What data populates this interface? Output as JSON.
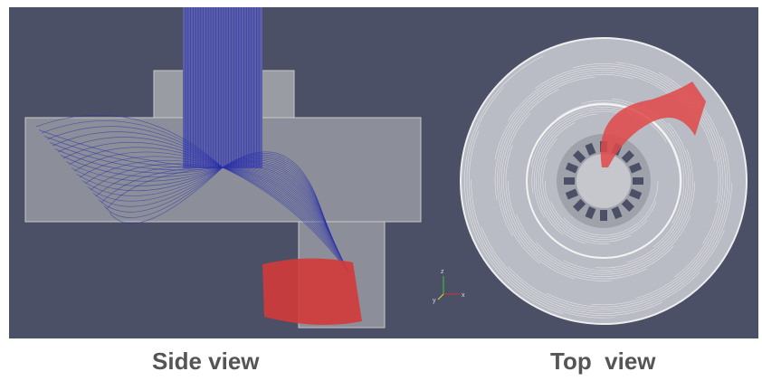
{
  "captions": {
    "side": "Side view",
    "top": "Top  view"
  },
  "axes_triad": {
    "z": "z",
    "y": "y",
    "x": "x"
  }
}
